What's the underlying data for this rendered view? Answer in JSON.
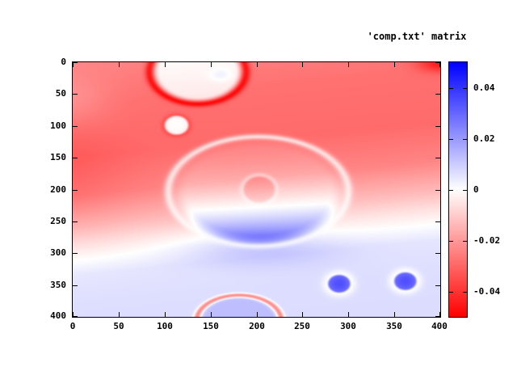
{
  "chart_data": {
    "type": "heatmap",
    "title": "'comp.txt' matrix",
    "x_range": [
      0,
      400
    ],
    "y_range": [
      0,
      400
    ],
    "y_inverted": true,
    "x_ticks": [
      0,
      50,
      100,
      150,
      200,
      250,
      300,
      350,
      400
    ],
    "y_ticks": [
      0,
      50,
      100,
      150,
      200,
      250,
      300,
      350,
      400
    ],
    "grid": false,
    "legend_position": "top-right-title",
    "colorbar": {
      "range": [
        -0.05,
        0.05
      ],
      "tick_values": [
        0.04,
        0.02,
        0,
        -0.02,
        -0.04
      ],
      "tick_labels": [
        "0.04",
        "0.02",
        "0",
        "-0.02",
        "-0.04"
      ],
      "negative_color": "#ff0000",
      "zero_color": "#ffffff",
      "positive_color": "#0000ff"
    },
    "field": {
      "comment": "value field in data coords; red=negative, blue=positive; y increases downward",
      "background": {
        "slant": 0.14,
        "stops": [
          [
            0,
            -0.024
          ],
          [
            70,
            -0.028
          ],
          [
            150,
            -0.029
          ],
          [
            210,
            -0.024
          ],
          [
            260,
            -0.013
          ],
          [
            285,
            -0.006
          ],
          [
            310,
            0.0
          ],
          [
            335,
            0.005
          ],
          [
            380,
            0.0065
          ],
          [
            460,
            0.007
          ]
        ]
      },
      "features": [
        {
          "name": "top-bubble",
          "cx": 136,
          "cy": 15,
          "rx": 52,
          "ry": 50,
          "plateau": 0.024,
          "rim": -0.022,
          "rim_w": 0.1
        },
        {
          "name": "top-bubble-highlight",
          "cx": 161,
          "cy": 20,
          "rx": 12,
          "ry": 10,
          "soft": 0.005
        },
        {
          "name": "small-white-ellipse",
          "cx": 113,
          "cy": 99,
          "rx": 14,
          "ry": 16,
          "plateau": 0.028,
          "rim": -0.005,
          "rim_w": 0.25
        },
        {
          "name": "big-ellipse",
          "cx": 202,
          "cy": 203,
          "rx": 98,
          "ry": 86,
          "base": 0.004,
          "grad_u2": 0.024,
          "damp": 0.75,
          "damp_w": 0.05
        },
        {
          "name": "inner-ellipse",
          "cx": 203,
          "cy": 200,
          "rx": 19,
          "ry": 23,
          "plateau": -0.006,
          "damp": 0.4,
          "damp_w": 0.15
        },
        {
          "name": "bottom-arc",
          "cx": 181,
          "cy": 406,
          "rx": 46,
          "ry": 40,
          "plateau": 0.006,
          "rim": -0.03,
          "rim_w": 0.08
        },
        {
          "name": "blue-blob-left",
          "cx": 290,
          "cy": 348,
          "rx": 13,
          "ry": 15,
          "plateau": 0.028,
          "rim": -0.006,
          "rim_w": 0.5
        },
        {
          "name": "blue-blob-right",
          "cx": 362,
          "cy": 344,
          "rx": 13,
          "ry": 15,
          "plateau": 0.028,
          "rim": -0.006,
          "rim_w": 0.5
        },
        {
          "name": "corner-smudge",
          "cx": 402,
          "cy": 2,
          "rx": 26,
          "ry": 13,
          "soft": -0.018
        },
        {
          "name": "left-red-patch",
          "cx": -10,
          "cy": 185,
          "rx": 70,
          "ry": 90,
          "soft": -0.004
        },
        {
          "name": "topleft-light-patch",
          "cx": -5,
          "cy": 62,
          "rx": 45,
          "ry": 40,
          "soft": 0.006
        },
        {
          "name": "below-ellipse-glow",
          "cx": 202,
          "cy": 292,
          "rx": 85,
          "ry": 28,
          "soft": 0.008
        }
      ]
    }
  }
}
